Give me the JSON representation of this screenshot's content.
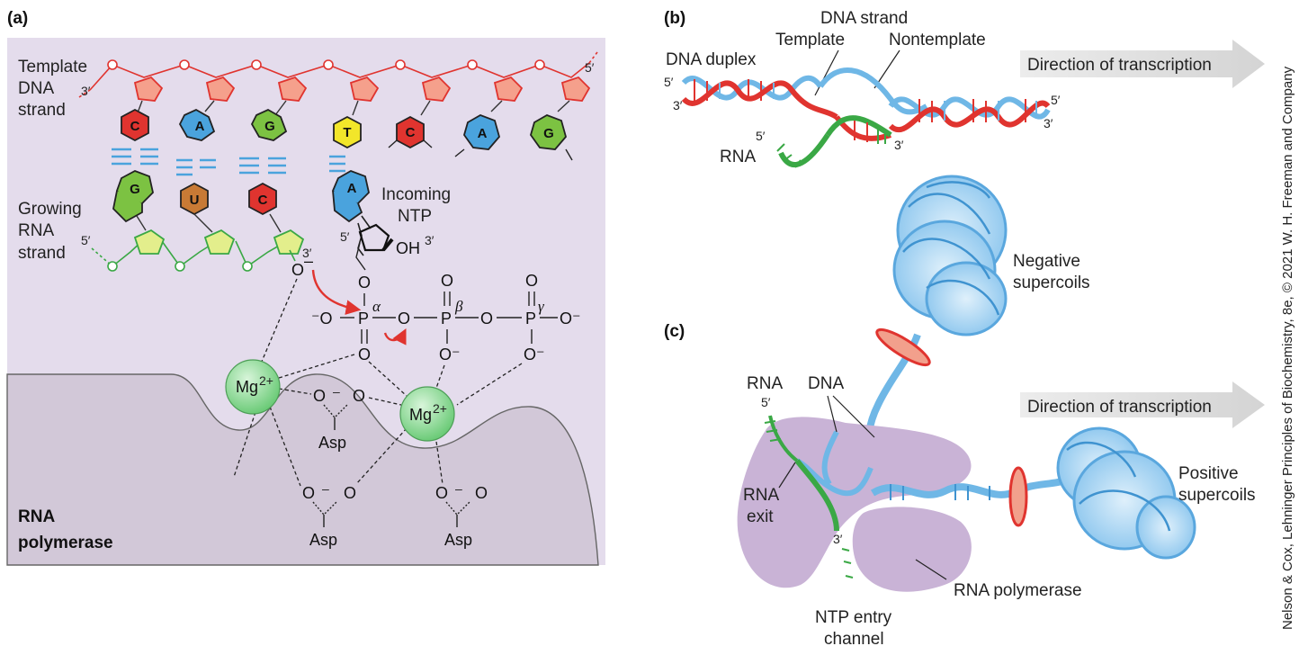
{
  "panel_a": {
    "label": "(a)",
    "template_strand": [
      "Template",
      "DNA",
      "strand"
    ],
    "template_3prime": "3′",
    "template_5prime": "5′",
    "growing_strand": [
      "Growing",
      "RNA",
      "strand"
    ],
    "growing_5prime": "5′",
    "growing_3prime": "3′",
    "template_bases": [
      "C",
      "A",
      "G",
      "T",
      "C",
      "A",
      "G"
    ],
    "rna_bases": [
      "G",
      "U",
      "C",
      "A"
    ],
    "incoming_ntp": [
      "Incoming",
      "NTP"
    ],
    "ntp_5prime": "5′",
    "ntp_3prime": "3′",
    "oh": "OH",
    "o_minus": "O",
    "minus": "–",
    "alpha": "α",
    "beta": "β",
    "gamma": "γ",
    "o": "O",
    "p": "P",
    "neg_o": "⁻O",
    "o_neg": "O⁻",
    "mg_left": "Mg",
    "mg_right": "Mg",
    "mg_charge": "2+",
    "asp": "Asp",
    "rna_polymerase": [
      "RNA",
      "polymerase"
    ]
  },
  "panel_b": {
    "label": "(b)",
    "dna_strand": "DNA strand",
    "template": "Template",
    "nontemplate": "Nontemplate",
    "dna_duplex": "DNA duplex",
    "rna": "RNA",
    "five_prime": "5′",
    "three_prime": "3′",
    "direction": "Direction of transcription"
  },
  "panel_c": {
    "label": "(c)",
    "negative_supercoils": [
      "Negative",
      "supercoils"
    ],
    "positive_supercoils": [
      "Positive",
      "supercoils"
    ],
    "rna": "RNA",
    "rna_5prime": "5′",
    "dna": "DNA",
    "rna_exit": [
      "RNA",
      "exit"
    ],
    "three_prime": "3′",
    "ntp_entry": [
      "NTP entry",
      "channel"
    ],
    "rna_polymerase": "RNA polymerase",
    "direction": "Direction of transcription"
  },
  "credit": "Nelson & Cox, Lehninger Principles of Biochemistry, 8e, © 2021 W. H. Freeman and Company",
  "colors": {
    "panel_bg": "#e4dcec",
    "pol_shape": "#c9b3d6",
    "template_red": "#e0342f",
    "rna_green": "#3aa845",
    "dna_blue": "#6fb7e6",
    "base_C": "#e0342f",
    "base_A": "#4aa3dd",
    "base_G": "#7cc242",
    "base_T": "#f2e62a",
    "base_U": "#c87a35",
    "mg_green": "#86d38e"
  }
}
